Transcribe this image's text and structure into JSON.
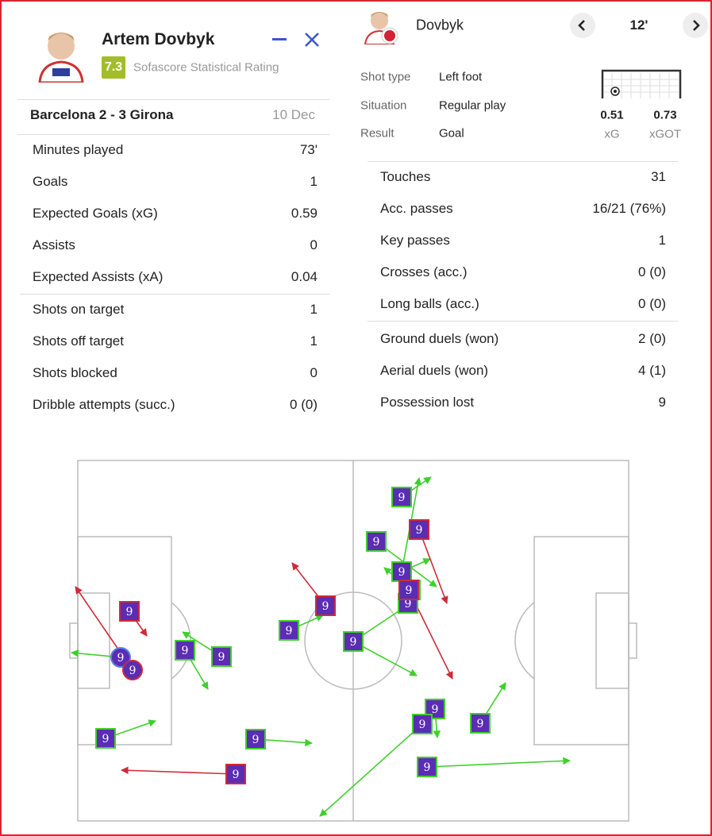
{
  "player": {
    "name": "Artem Dovbyk",
    "rating": "7.3",
    "rating_label": "Sofascore Statistical Rating"
  },
  "match": {
    "teams": "Barcelona 2 - 3 Girona",
    "date": "10 Dec"
  },
  "left_stats": [
    [
      {
        "label": "Minutes played",
        "value": "73'"
      },
      {
        "label": "Goals",
        "value": "1"
      },
      {
        "label": "Expected Goals (xG)",
        "value": "0.59"
      },
      {
        "label": "Assists",
        "value": "0"
      },
      {
        "label": "Expected Assists (xA)",
        "value": "0.04"
      }
    ],
    [
      {
        "label": "Shots on target",
        "value": "1"
      },
      {
        "label": "Shots off target",
        "value": "1"
      },
      {
        "label": "Shots blocked",
        "value": "0"
      },
      {
        "label": "Dribble attempts (succ.)",
        "value": "0 (0)"
      }
    ]
  ],
  "shot": {
    "player": "Dovbyk",
    "minute": "12'",
    "details": [
      {
        "label": "Shot type",
        "value": "Left foot"
      },
      {
        "label": "Situation",
        "value": "Regular play"
      },
      {
        "label": "Result",
        "value": "Goal"
      }
    ],
    "metrics": [
      {
        "value": "0.51",
        "label": "xG"
      },
      {
        "value": "0.73",
        "label": "xGOT"
      }
    ]
  },
  "right_stats": [
    [
      {
        "label": "Touches",
        "value": "31"
      },
      {
        "label": "Acc. passes",
        "value": "16/21 (76%)"
      },
      {
        "label": "Key passes",
        "value": "1"
      },
      {
        "label": "Crosses (acc.)",
        "value": "0 (0)"
      },
      {
        "label": "Long balls (acc.)",
        "value": "0 (0)"
      }
    ],
    [
      {
        "label": "Ground duels (won)",
        "value": "2 (0)"
      },
      {
        "label": "Aerial duels (won)",
        "value": "4 (1)"
      },
      {
        "label": "Possession lost",
        "value": "9"
      }
    ]
  ],
  "pitch": {
    "jersey": "9"
  }
}
